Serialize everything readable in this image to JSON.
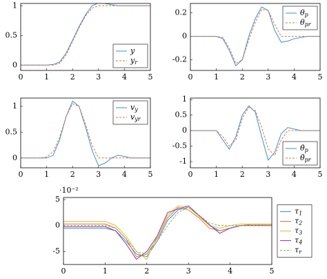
{
  "chart_data": [
    {
      "type": "line",
      "legend": "lower right",
      "xlim": [
        0,
        5
      ],
      "ylim": [
        -0.09,
        1.04
      ],
      "xticks": [
        0,
        1,
        2,
        3,
        4,
        5
      ],
      "yticks": [
        0,
        0.5,
        1
      ],
      "x": [
        0,
        0.25,
        0.5,
        0.75,
        1,
        1.25,
        1.5,
        1.75,
        2,
        2.25,
        2.5,
        2.75,
        3,
        3.25,
        3.5,
        3.75,
        4,
        4.25,
        4.5,
        4.75,
        5
      ],
      "series": [
        {
          "name": "y",
          "color": "#3b8fd0",
          "style": "solid",
          "values": [
            0,
            0,
            0,
            0,
            0,
            0.01,
            0.05,
            0.2,
            0.42,
            0.65,
            0.85,
            1.0,
            1.05,
            1.04,
            1.02,
            1.0,
            1.0,
            1.0,
            1.0,
            1.0,
            1.0
          ]
        },
        {
          "name": "y_r",
          "color": "#e0703a",
          "style": "dashed",
          "values": [
            0,
            0,
            0,
            0,
            0,
            0,
            0.03,
            0.17,
            0.4,
            0.63,
            0.83,
            0.96,
            1.0,
            1.0,
            1.0,
            1.0,
            1.0,
            1.0,
            1.0,
            1.0,
            1.0
          ]
        }
      ]
    },
    {
      "type": "line",
      "legend": "upper right",
      "xlim": [
        0,
        5
      ],
      "ylim": [
        -0.29,
        0.28
      ],
      "xticks": [
        0,
        1,
        2,
        3,
        4,
        5
      ],
      "yticks": [
        -0.2,
        0,
        0.2
      ],
      "x": [
        0,
        0.25,
        0.5,
        0.75,
        1,
        1.25,
        1.5,
        1.75,
        2,
        2.25,
        2.5,
        2.75,
        3,
        3.25,
        3.5,
        3.75,
        4,
        4.25,
        4.5,
        4.75,
        5
      ],
      "series": [
        {
          "name": "θ_p",
          "color": "#3b8fd0",
          "style": "solid",
          "values": [
            0,
            0,
            0,
            0,
            0,
            -0.02,
            -0.12,
            -0.25,
            -0.2,
            0.0,
            0.15,
            0.25,
            0.22,
            0.05,
            -0.05,
            -0.04,
            -0.02,
            -0.01,
            0,
            0,
            0
          ]
        },
        {
          "name": "θ_pr",
          "color": "#e0703a",
          "style": "dashed",
          "values": [
            0,
            0,
            0,
            0,
            0,
            -0.01,
            -0.1,
            -0.23,
            -0.2,
            -0.03,
            0.12,
            0.23,
            0.22,
            0.1,
            0,
            0,
            0,
            0,
            0,
            0,
            0
          ]
        }
      ]
    },
    {
      "type": "line",
      "legend": "upper right",
      "xlim": [
        0,
        5
      ],
      "ylim": [
        -0.19,
        1.16
      ],
      "xticks": [
        0,
        1,
        2,
        3,
        4,
        5
      ],
      "yticks": [
        0,
        0.5,
        1
      ],
      "x": [
        0,
        0.25,
        0.5,
        0.75,
        1,
        1.25,
        1.5,
        1.75,
        2,
        2.25,
        2.5,
        2.75,
        3,
        3.25,
        3.5,
        3.75,
        4,
        4.25,
        4.5,
        4.75,
        5
      ],
      "series": [
        {
          "name": "v_y",
          "color": "#3b8fd0",
          "style": "solid",
          "values": [
            0,
            0,
            0,
            0,
            0,
            0.05,
            0.35,
            0.8,
            1.1,
            1.0,
            0.6,
            0.15,
            -0.15,
            -0.1,
            0,
            0.05,
            0.03,
            0,
            0,
            0,
            0
          ]
        },
        {
          "name": "v_yr",
          "color": "#e0703a",
          "style": "dashed",
          "values": [
            0,
            0,
            0,
            0,
            0.02,
            0.12,
            0.4,
            0.8,
            1.05,
            1.0,
            0.65,
            0.25,
            0,
            0,
            0,
            0,
            0,
            0,
            0,
            0,
            0
          ]
        }
      ]
    },
    {
      "type": "line",
      "legend": "lower right",
      "xlim": [
        0,
        5
      ],
      "ylim": [
        -1.2,
        1.05
      ],
      "xticks": [
        0,
        1,
        2,
        3,
        4,
        5
      ],
      "yticks": [
        -1,
        -0.5,
        0,
        0.5,
        1
      ],
      "x": [
        0,
        0.25,
        0.5,
        0.75,
        1,
        1.25,
        1.5,
        1.75,
        2,
        2.25,
        2.5,
        2.75,
        3,
        3.25,
        3.5,
        3.75,
        4,
        4.25,
        4.5,
        4.75,
        5
      ],
      "series": [
        {
          "name": "θ̇_p",
          "color": "#3b8fd0",
          "style": "solid",
          "values": [
            0,
            0,
            0,
            0,
            0,
            -0.3,
            -0.6,
            -0.2,
            0.5,
            0.8,
            0.6,
            -0.2,
            -0.95,
            -0.7,
            -0.1,
            0.1,
            0.05,
            0,
            0,
            0,
            0
          ]
        },
        {
          "name": "θ̇_pr",
          "color": "#e0703a",
          "style": "dashed",
          "values": [
            0,
            0,
            0,
            0,
            0,
            -0.2,
            -0.5,
            -0.3,
            0.4,
            0.75,
            0.65,
            0.1,
            -0.6,
            -0.8,
            -0.3,
            0,
            0,
            0,
            0,
            0,
            0
          ]
        }
      ]
    },
    {
      "type": "line",
      "legend": "outside right",
      "multiplier": "·10⁻²",
      "xlim": [
        0,
        5
      ],
      "ylim": [
        -7.5,
        5.4
      ],
      "xticks": [
        0,
        1,
        2,
        3,
        4,
        5
      ],
      "yticks": [
        -5,
        0,
        5
      ],
      "x": [
        0,
        0.25,
        0.5,
        0.75,
        1,
        1.25,
        1.5,
        1.75,
        2,
        2.25,
        2.5,
        2.75,
        3,
        3.25,
        3.5,
        3.75,
        4,
        4.25,
        4.5,
        4.75,
        5
      ],
      "series": [
        {
          "name": "τ_1",
          "color": "#3b8fd0",
          "style": "solid",
          "values": [
            -0.5,
            -0.5,
            -0.5,
            -0.5,
            -0.5,
            -1,
            -3,
            -5.5,
            -6,
            -3,
            1,
            3,
            3.5,
            2,
            0,
            -1,
            -0.5,
            0,
            0,
            0,
            0
          ]
        },
        {
          "name": "τ_2",
          "color": "#e0703a",
          "style": "solid",
          "values": [
            0.3,
            0.3,
            0.3,
            0.3,
            0.3,
            -0.5,
            -2.5,
            -6,
            -5.5,
            -2.5,
            1.5,
            3.5,
            3,
            1.5,
            -0.5,
            -1,
            -0.5,
            0,
            0.2,
            0.2,
            0.2
          ]
        },
        {
          "name": "τ_3",
          "color": "#e8b830",
          "style": "solid",
          "values": [
            0.8,
            0.8,
            0.8,
            0.8,
            0.8,
            0,
            -2,
            -5,
            -6.5,
            -2,
            2,
            3.8,
            3.5,
            1.8,
            0,
            -0.5,
            0,
            0.3,
            0.3,
            0.3,
            0.3
          ]
        },
        {
          "name": "τ_4",
          "color": "#8a3aa0",
          "style": "solid",
          "values": [
            -0.2,
            -0.2,
            -0.2,
            -0.2,
            -0.2,
            -1,
            -3.5,
            -6.5,
            -5,
            -2,
            2.5,
            3.2,
            3.8,
            2,
            0.2,
            -1.5,
            -0.5,
            0,
            0,
            0,
            0
          ]
        },
        {
          "name": "τ_r",
          "color": "#7fb35a",
          "style": "dashed",
          "values": [
            0,
            0,
            0,
            0,
            0,
            -0.5,
            -2.5,
            -5,
            -5.5,
            -3,
            0,
            2.5,
            3.5,
            2,
            0.5,
            0,
            0,
            0,
            0,
            0,
            0
          ]
        }
      ]
    }
  ]
}
